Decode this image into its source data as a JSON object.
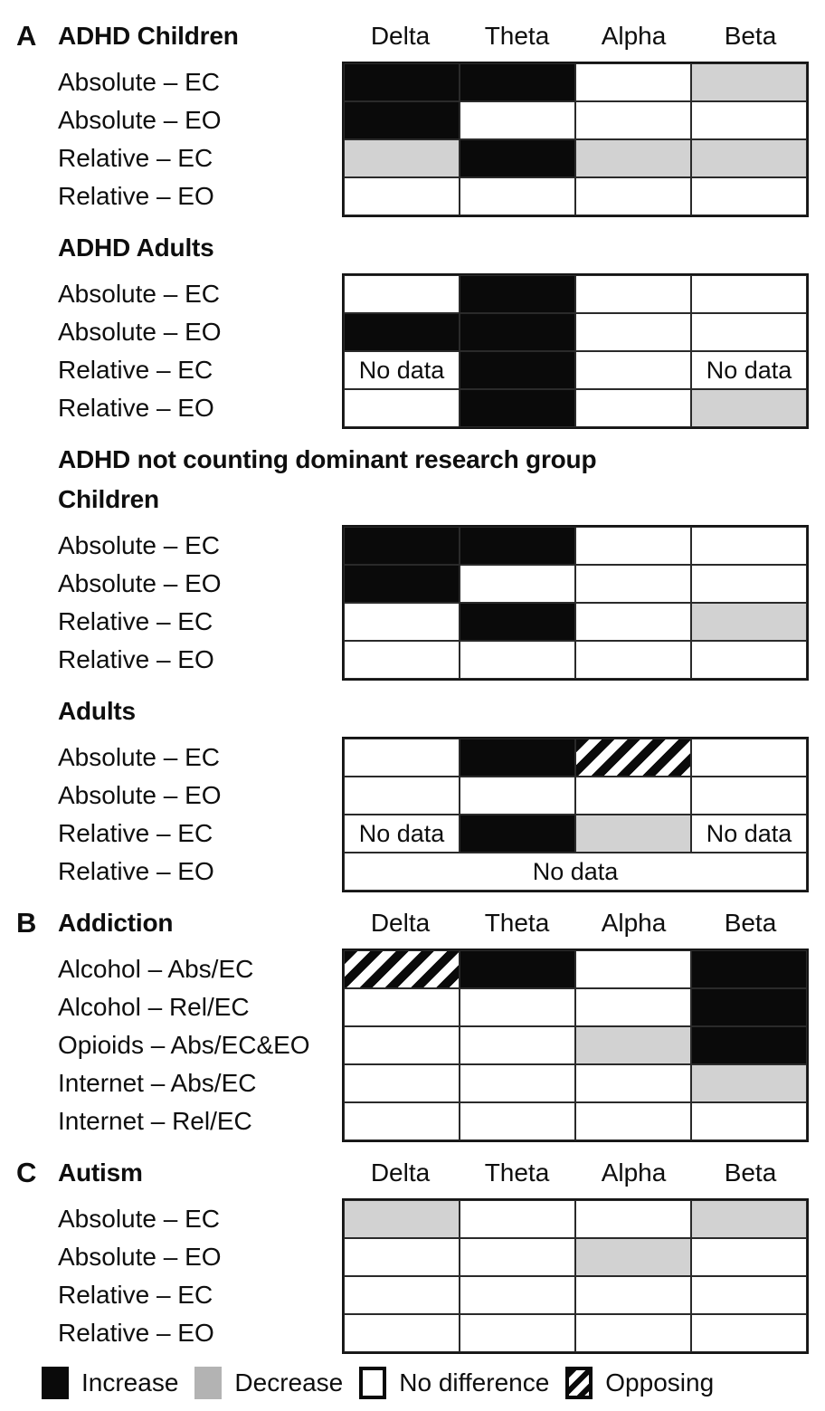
{
  "labels": {
    "no_data": "No data"
  },
  "colors": {
    "increase": "#0a0a0a",
    "decrease_cell": "#d2d2d2",
    "decrease_legend": "#b3b3b3",
    "no_difference": "#ffffff",
    "grid_border": "#151515"
  },
  "legend": {
    "items": [
      {
        "code": "I",
        "label": "Increase"
      },
      {
        "code": "D",
        "label": "Decrease"
      },
      {
        "code": "N",
        "label": "No difference"
      },
      {
        "code": "O",
        "label": "Opposing"
      }
    ]
  },
  "chart_data": {
    "type": "heatmap",
    "columns": [
      "Delta",
      "Theta",
      "Alpha",
      "Beta"
    ],
    "cell_codes": {
      "I": "Increase",
      "D": "Decrease",
      "N": "No difference",
      "O": "Opposing",
      "ND": "No data"
    },
    "panels": [
      {
        "panel_letter": "A",
        "title": "ADHD Children",
        "show_column_headers": true,
        "rows": [
          {
            "label": "Absolute – EC",
            "cells": [
              "I",
              "I",
              "N",
              "D"
            ]
          },
          {
            "label": "Absolute – EO",
            "cells": [
              "I",
              "N",
              "N",
              "N"
            ]
          },
          {
            "label": "Relative – EC",
            "cells": [
              "D",
              "I",
              "D",
              "D"
            ]
          },
          {
            "label": "Relative – EO",
            "cells": [
              "N",
              "N",
              "N",
              "N"
            ]
          }
        ]
      },
      {
        "panel_letter": "",
        "title": "ADHD Adults",
        "show_column_headers": false,
        "rows": [
          {
            "label": "Absolute – EC",
            "cells": [
              "N",
              "I",
              "N",
              "N"
            ]
          },
          {
            "label": "Absolute – EO",
            "cells": [
              "I",
              "I",
              "N",
              "N"
            ]
          },
          {
            "label": "Relative – EC",
            "cells": [
              "ND",
              "I",
              "N",
              "ND"
            ]
          },
          {
            "label": "Relative – EO",
            "cells": [
              "N",
              "I",
              "N",
              "D"
            ]
          }
        ]
      },
      {
        "panel_letter": "",
        "title": "ADHD not counting dominant research group",
        "heading_only": true
      },
      {
        "panel_letter": "",
        "title": "Children",
        "show_column_headers": false,
        "rows": [
          {
            "label": "Absolute – EC",
            "cells": [
              "I",
              "I",
              "N",
              "N"
            ]
          },
          {
            "label": "Absolute – EO",
            "cells": [
              "I",
              "N",
              "N",
              "N"
            ]
          },
          {
            "label": "Relative – EC",
            "cells": [
              "N",
              "I",
              "N",
              "D"
            ]
          },
          {
            "label": "Relative – EO",
            "cells": [
              "N",
              "N",
              "N",
              "N"
            ]
          }
        ]
      },
      {
        "panel_letter": "",
        "title": "Adults",
        "show_column_headers": false,
        "rows": [
          {
            "label": "Absolute – EC",
            "cells": [
              "N",
              "I",
              "O",
              "N"
            ]
          },
          {
            "label": "Absolute – EO",
            "cells": [
              "N",
              "N",
              "N",
              "N"
            ]
          },
          {
            "label": "Relative – EC",
            "cells": [
              "ND",
              "I",
              "D",
              "ND"
            ]
          },
          {
            "label": "Relative – EO",
            "cells": [
              {
                "code": "ND",
                "span": 4
              }
            ]
          }
        ]
      },
      {
        "panel_letter": "B",
        "title": "Addiction",
        "show_column_headers": true,
        "rows": [
          {
            "label": "Alcohol – Abs/EC",
            "cells": [
              "O",
              "I",
              "N",
              "I"
            ]
          },
          {
            "label": "Alcohol – Rel/EC",
            "cells": [
              "N",
              "N",
              "N",
              "I"
            ]
          },
          {
            "label": "Opioids – Abs/EC&EO",
            "cells": [
              "N",
              "N",
              "D",
              "I"
            ]
          },
          {
            "label": "Internet – Abs/EC",
            "cells": [
              "N",
              "N",
              "N",
              "D"
            ]
          },
          {
            "label": "Internet – Rel/EC",
            "cells": [
              "N",
              "N",
              "N",
              "N"
            ]
          }
        ]
      },
      {
        "panel_letter": "C",
        "title": "Autism",
        "show_column_headers": true,
        "rows": [
          {
            "label": "Absolute – EC",
            "cells": [
              "D",
              "N",
              "N",
              "D"
            ]
          },
          {
            "label": "Absolute – EO",
            "cells": [
              "N",
              "N",
              "D",
              "N"
            ]
          },
          {
            "label": "Relative – EC",
            "cells": [
              "N",
              "N",
              "N",
              "N"
            ]
          },
          {
            "label": "Relative – EO",
            "cells": [
              "N",
              "N",
              "N",
              "N"
            ]
          }
        ]
      }
    ]
  }
}
